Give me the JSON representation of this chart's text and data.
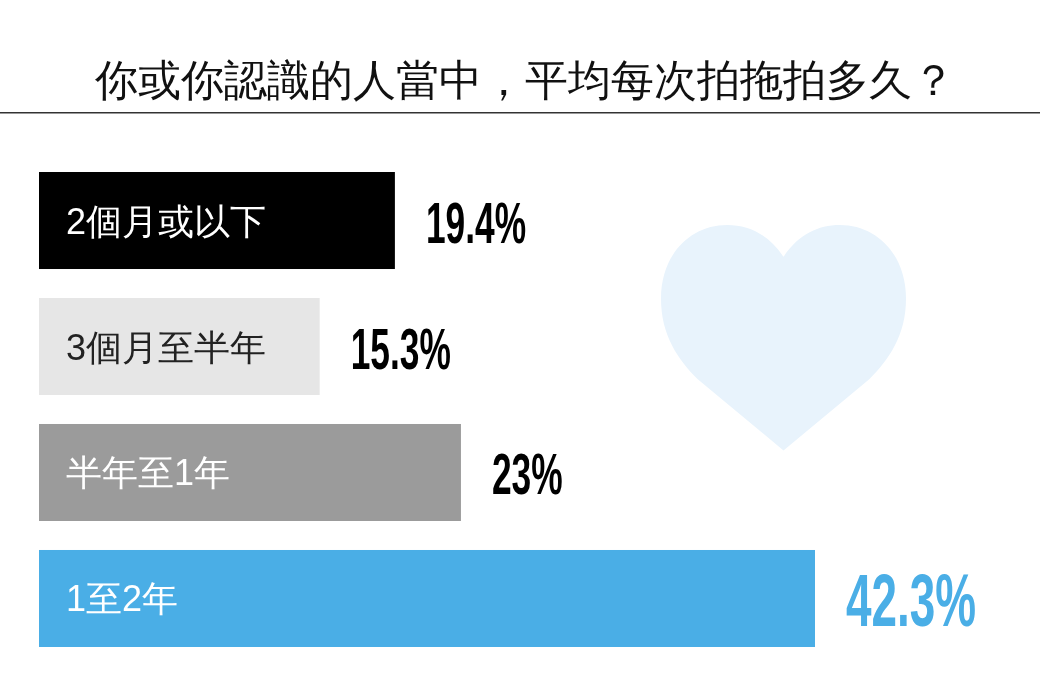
{
  "chart_data": {
    "type": "bar",
    "orientation": "horizontal",
    "title": "你或你認識的人當中，平均每次拍拖拍多久？",
    "categories": [
      "2個月或以下",
      "3個月至半年",
      "半年至1年",
      "1至2年"
    ],
    "values": [
      19.4,
      15.3,
      23,
      42.3
    ],
    "colors": [
      "#000000",
      "#e6e6e6",
      "#9b9b9b",
      "#4aaee6"
    ],
    "value_labels": [
      "19.4%",
      "15.3%",
      "23%",
      "42.3%"
    ]
  }
}
